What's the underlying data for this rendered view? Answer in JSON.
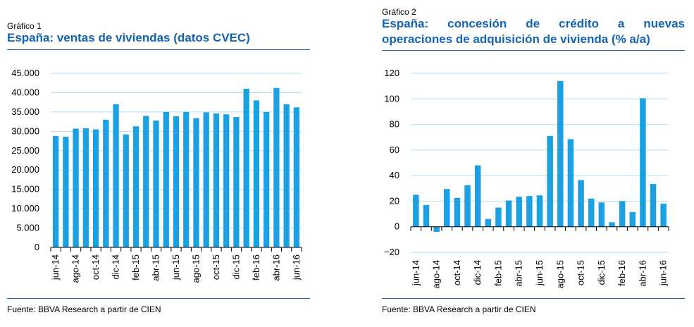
{
  "charts": [
    {
      "figure_label": "Gráfico 1",
      "title_lines": [
        "España: ventas de viviendas (datos CVEC)"
      ],
      "source": "Fuente: BBVA Research a partir de CIEN",
      "bar_color": "#1ba1e2",
      "accent_color": "#1464b4",
      "grid_color": "#aee0f6"
    },
    {
      "figure_label": "Gráfico 2",
      "title_lines": [
        "España: concesión de crédito a nuevas",
        "operaciones de adquisición de vivienda (% a/a)"
      ],
      "source": "Fuente: BBVA Research a partir de CIEN",
      "bar_color": "#1ba1e2",
      "accent_color": "#1464b4",
      "grid_color": "#aee0f6"
    }
  ],
  "chart_data": [
    {
      "type": "bar",
      "title": "España: ventas de viviendas (datos CVEC)",
      "xlabel": "",
      "ylabel": "",
      "ylim": [
        0,
        45000
      ],
      "yticks": [
        0,
        5000,
        10000,
        15000,
        20000,
        25000,
        30000,
        35000,
        40000,
        45000
      ],
      "ytick_labels": [
        "0",
        "5.000",
        "10.000",
        "15.000",
        "20.000",
        "25.000",
        "30.000",
        "35.000",
        "40.000",
        "45.000"
      ],
      "grid": true,
      "categories": [
        "jun-14",
        "jul-14",
        "ago-14",
        "sep-14",
        "oct-14",
        "nov-14",
        "dic-14",
        "ene-15",
        "feb-15",
        "mar-15",
        "abr-15",
        "may-15",
        "jun-15",
        "jul-15",
        "ago-15",
        "sep-15",
        "oct-15",
        "nov-15",
        "dic-15",
        "ene-16",
        "feb-16",
        "mar-16",
        "abr-16",
        "may-16",
        "jun-16"
      ],
      "category_labels": [
        "jun-14",
        "",
        "ago-14",
        "",
        "oct-14",
        "",
        "dic-14",
        "",
        "feb-15",
        "",
        "abr-15",
        "",
        "jun-15",
        "",
        "ago-15",
        "",
        "oct-15",
        "",
        "dic-15",
        "",
        "feb-16",
        "",
        "abr-16",
        "",
        "jun-16"
      ],
      "values": [
        28800,
        28600,
        30700,
        30800,
        30500,
        33000,
        37000,
        29200,
        31300,
        34000,
        32800,
        35000,
        33900,
        35000,
        33400,
        34900,
        34600,
        34400,
        33700,
        41000,
        38000,
        35000,
        41200,
        37000,
        36200
      ]
    },
    {
      "type": "bar",
      "title": "España: concesión de crédito a nuevas operaciones de adquisición de vivienda (% a/a)",
      "xlabel": "",
      "ylabel": "",
      "ylim": [
        -20,
        120
      ],
      "yticks": [
        -20,
        0,
        20,
        40,
        60,
        80,
        100,
        120
      ],
      "ytick_labels": [
        "−20",
        "0",
        "20",
        "40",
        "60",
        "80",
        "100",
        "120"
      ],
      "grid": true,
      "categories": [
        "jun-14",
        "jul-14",
        "ago-14",
        "sep-14",
        "oct-14",
        "nov-14",
        "dic-14",
        "ene-15",
        "feb-15",
        "mar-15",
        "abr-15",
        "may-15",
        "jun-15",
        "jul-15",
        "ago-15",
        "sep-15",
        "oct-15",
        "nov-15",
        "dic-15",
        "ene-16",
        "feb-16",
        "mar-16",
        "abr-16",
        "may-16",
        "jun-16"
      ],
      "category_labels": [
        "jun-14",
        "",
        "ago-14",
        "",
        "oct-14",
        "",
        "dic-14",
        "",
        "feb-15",
        "",
        "abr-15",
        "",
        "jun-15",
        "",
        "ago-15",
        "",
        "oct-15",
        "",
        "dic-15",
        "",
        "feb-16",
        "",
        "abr-16",
        "",
        "jun-16"
      ],
      "values": [
        25,
        17,
        -4,
        29.5,
        22.5,
        32.5,
        48,
        6,
        15,
        20.5,
        23.5,
        24,
        24.5,
        71,
        114,
        68.5,
        36.5,
        22,
        19,
        3.5,
        20,
        11.5,
        100.5,
        33.5,
        18
      ]
    }
  ]
}
